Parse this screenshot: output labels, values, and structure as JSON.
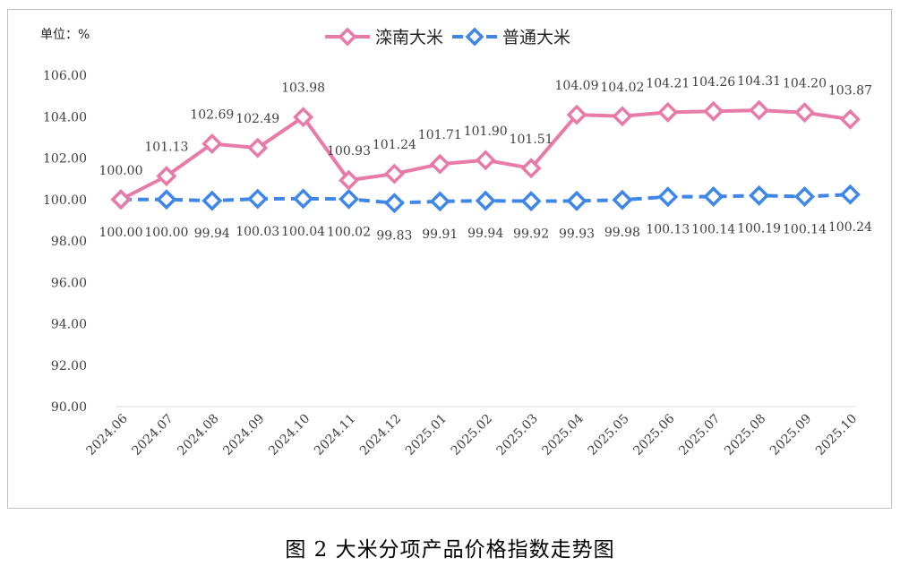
{
  "caption": "图 2  大米分项产品价格指数走势图",
  "chart_data": {
    "type": "line",
    "unit_label": "单位：%",
    "categories": [
      "2024.06",
      "2024.07",
      "2024.08",
      "2024.09",
      "2024.10",
      "2024.11",
      "2024.12",
      "2025.01",
      "2025.02",
      "2025.03",
      "2025.04",
      "2025.05",
      "2025.06",
      "2025.07",
      "2025.08",
      "2025.09",
      "2025.10"
    ],
    "series": [
      {
        "name": "滦南大米",
        "color": "#e87aa8",
        "marker_fill": "#ffffff",
        "line_style": "solid",
        "marker": "diamond",
        "values": [
          100.0,
          101.13,
          102.69,
          102.49,
          103.98,
          100.93,
          101.24,
          101.71,
          101.9,
          101.51,
          104.09,
          104.02,
          104.21,
          104.26,
          104.31,
          104.2,
          103.87
        ],
        "labels": [
          "100.00",
          "101.13",
          "102.69",
          "102.49",
          "103.98",
          "100.93",
          "101.24",
          "101.71",
          "101.90",
          "101.51",
          "104.09",
          "104.02",
          "104.21",
          "104.26",
          "104.31",
          "104.20",
          "103.87"
        ],
        "label_position": "above"
      },
      {
        "name": "普通大米",
        "color": "#3e86e8",
        "marker_fill": "#ffffff",
        "line_style": "dashed",
        "marker": "diamond",
        "values": [
          100.0,
          100.0,
          99.94,
          100.03,
          100.04,
          100.02,
          99.83,
          99.91,
          99.94,
          99.92,
          99.93,
          99.98,
          100.13,
          100.14,
          100.19,
          100.14,
          100.24
        ],
        "labels": [
          "100.00",
          "100.00",
          "99.94",
          "100.03",
          "100.04",
          "100.02",
          "99.83",
          "99.91",
          "99.94",
          "99.92",
          "99.93",
          "99.98",
          "100.13",
          "100.14",
          "100.19",
          "100.14",
          "100.24"
        ],
        "label_position": "below"
      }
    ],
    "ylim": [
      90,
      106
    ],
    "yticks": [
      "90.00",
      "92.00",
      "94.00",
      "96.00",
      "98.00",
      "100.00",
      "102.00",
      "104.00",
      "106.00"
    ],
    "grid": false,
    "legend_position": "top-center"
  }
}
